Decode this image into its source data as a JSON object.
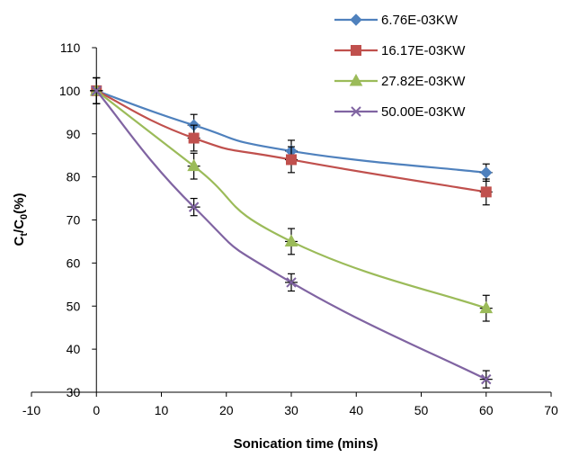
{
  "chart_data": {
    "type": "line",
    "xlabel": "Sonication time (mins)",
    "ylabel": {
      "main": "C",
      "sub1": "t",
      "mid": "/C",
      "sub2": "0",
      "tail": "(%)"
    },
    "xlim": [
      -10,
      70
    ],
    "ylim": [
      30,
      110
    ],
    "xticks": [
      -10,
      0,
      10,
      20,
      30,
      40,
      50,
      60,
      70
    ],
    "yticks": [
      30,
      40,
      50,
      60,
      70,
      80,
      90,
      100,
      110
    ],
    "x": [
      0,
      15,
      30,
      60
    ],
    "grid": false,
    "legend_position": "top-right",
    "series": [
      {
        "name": "6.76E-03KW",
        "color": "#4F81BD",
        "marker": "diamond",
        "values": [
          100,
          92,
          86,
          81
        ],
        "errors": [
          3,
          2.5,
          2.5,
          2
        ]
      },
      {
        "name": "16.17E-03KW",
        "color": "#C0504D",
        "marker": "square",
        "values": [
          100,
          89,
          84,
          76.5
        ],
        "errors": [
          3,
          3,
          3,
          3
        ]
      },
      {
        "name": "27.82E-03KW",
        "color": "#9BBB59",
        "marker": "triangle",
        "values": [
          100,
          82.5,
          65,
          49.5
        ],
        "errors": [
          3,
          3,
          3,
          3
        ]
      },
      {
        "name": "50.00E-03KW",
        "color": "#8064A2",
        "marker": "x",
        "values": [
          100,
          73,
          55.5,
          33
        ],
        "errors": [
          3,
          2,
          2,
          2
        ]
      }
    ]
  }
}
